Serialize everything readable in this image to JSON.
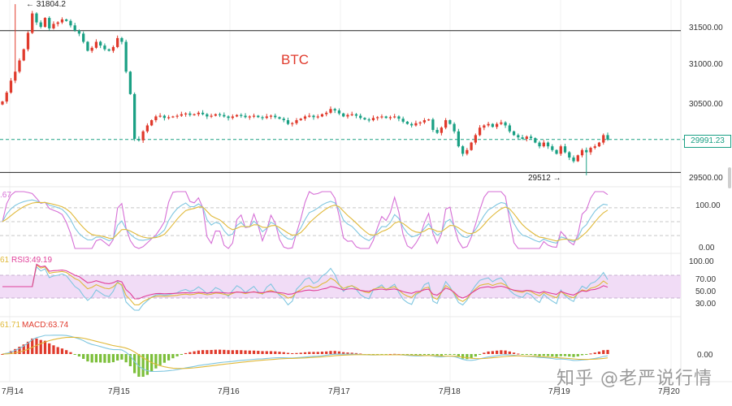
{
  "title": "BTC",
  "watermark": "知乎 @老严说行情",
  "current_price_label": "29991.23",
  "high_label": "← 31804.2",
  "low_label": "29512 →",
  "colors": {
    "up": "#e03a2c",
    "down": "#1aa084",
    "kdj_k": "#7fc6e0",
    "kdj_d": "#e0b93a",
    "kdj_j": "#d66fd6",
    "rsi1": "#7fc6e0",
    "rsi2": "#e0b93a",
    "rsi3": "#e0409a",
    "macd_dif": "#7fc6e0",
    "macd_dea": "#e0b93a",
    "hist_up": "#e03a2c",
    "hist_down": "#7cbf3a",
    "band": "#f1dcf6"
  },
  "chart_data": [
    {
      "type": "candlestick",
      "name": "BTC",
      "xlabel": "",
      "ylabel": "",
      "x_ticks": [
        "7月14",
        "7月15",
        "7月16",
        "7月17",
        "7月18",
        "7月19",
        "7月20"
      ],
      "y_ticks": [
        "29500.00",
        "30000.00",
        "30500.00",
        "31000.00",
        "31500.00"
      ],
      "ylim": [
        29380,
        31860
      ],
      "horizontal_levels": [
        31450,
        29550
      ],
      "current_price": 29991.23,
      "high": 31804.2,
      "low": 29512,
      "closes": [
        30500,
        30620,
        30780,
        30900,
        31050,
        31200,
        31420,
        31680,
        31560,
        31500,
        31620,
        31480,
        31540,
        31560,
        31600,
        31580,
        31520,
        31450,
        31410,
        31300,
        31180,
        31220,
        31300,
        31250,
        31200,
        31180,
        31230,
        31350,
        31300,
        30900,
        30600,
        30000,
        29980,
        30100,
        30180,
        30250,
        30300,
        30310,
        30280,
        30290,
        30300,
        30310,
        30330,
        30340,
        30320,
        30330,
        30350,
        30330,
        30300,
        30310,
        30330,
        30320,
        30300,
        30280,
        30300,
        30320,
        30310,
        30290,
        30300,
        30310,
        30290,
        30280,
        30300,
        30310,
        30290,
        30270,
        30250,
        30200,
        30210,
        30250,
        30270,
        30300,
        30310,
        30290,
        30300,
        30330,
        30350,
        30400,
        30380,
        30340,
        30300,
        30320,
        30330,
        30310,
        30280,
        30260,
        30250,
        30280,
        30290,
        30300,
        30280,
        30290,
        30300,
        30270,
        30230,
        30200,
        30180,
        30210,
        30220,
        30250,
        30260,
        30120,
        30080,
        30150,
        30250,
        30200,
        30100,
        29900,
        29800,
        29850,
        29950,
        30050,
        30150,
        30180,
        30200,
        30160,
        30200,
        30220,
        30180,
        30100,
        30050,
        30020,
        30000,
        30030,
        30010,
        29950,
        29900,
        29950,
        29900,
        29850,
        29800,
        29900,
        29820,
        29750,
        29700,
        29780,
        29850,
        29820,
        29880,
        29900,
        29950,
        30050,
        29990
      ]
    },
    {
      "type": "line",
      "name": "KDJ",
      "readout": ".67",
      "y_ticks": [
        "100.00",
        "0.00"
      ],
      "ylim": [
        -8,
        115
      ],
      "levels": [
        80,
        50,
        20
      ]
    },
    {
      "type": "line",
      "name": "RSI",
      "readout_left": "61",
      "readout": "RSI3:49.19",
      "y_ticks": [
        "100.00",
        "70.00",
        "50.00",
        "30.00"
      ],
      "ylim": [
        0,
        100
      ],
      "band": [
        30,
        70
      ]
    },
    {
      "type": "bar",
      "name": "MACD",
      "readout_left": "61.71",
      "readout": "MACD:63.74",
      "y_ticks": [
        "0.00"
      ]
    }
  ]
}
